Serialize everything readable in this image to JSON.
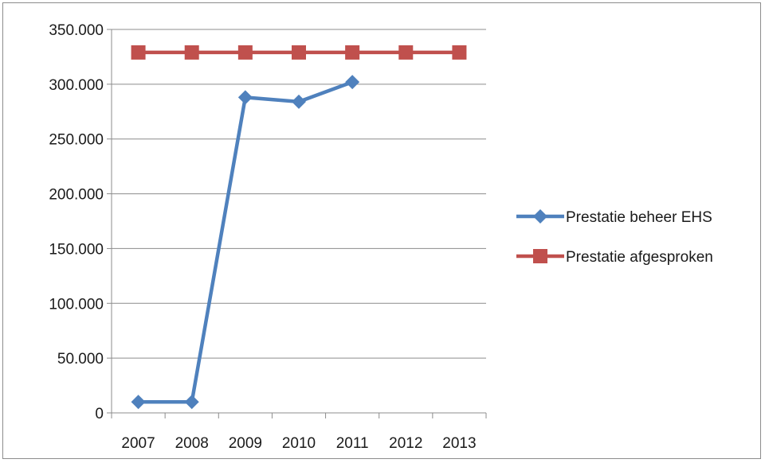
{
  "chart_data": {
    "type": "line",
    "categories": [
      "2007",
      "2008",
      "2009",
      "2010",
      "2011",
      "2012",
      "2013"
    ],
    "ylim": [
      0,
      350000
    ],
    "yticks": [
      0,
      50000,
      100000,
      150000,
      200000,
      250000,
      300000,
      350000
    ],
    "ytick_labels": [
      "0",
      "50.000",
      "100.000",
      "150.000",
      "200.000",
      "250.000",
      "300.000",
      "350.000"
    ],
    "grid": true,
    "legend_position": "right",
    "series": [
      {
        "name": "Prestatie beheer EHS",
        "color": "#4f81bd",
        "marker": "diamond",
        "values": [
          10000,
          10000,
          288000,
          284000,
          302000,
          null,
          null
        ]
      },
      {
        "name": "Prestatie afgesproken",
        "color": "#c0504d",
        "marker": "square",
        "values": [
          329000,
          329000,
          329000,
          329000,
          329000,
          329000,
          329000
        ]
      }
    ]
  }
}
